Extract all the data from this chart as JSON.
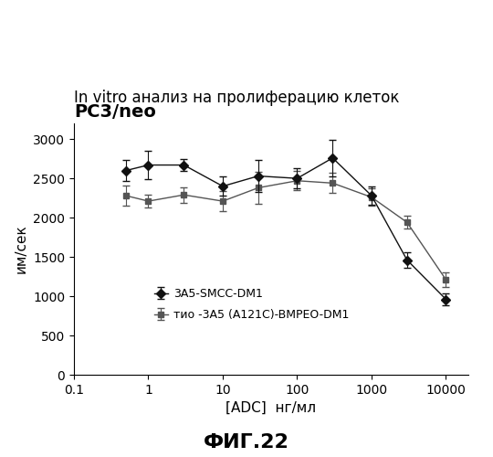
{
  "title_line1": "In vitro анализ на пролиферацию клеток",
  "title_line2": "PC3/neo",
  "xlabel": "[ADC]  нг/мл",
  "ylabel": "им/сек",
  "fig_label": "ФИГ.22",
  "xlim": [
    0.1,
    20000
  ],
  "ylim": [
    0,
    3200
  ],
  "yticks": [
    0,
    500,
    1000,
    1500,
    2000,
    2500,
    3000
  ],
  "series1_label": "3A5-SMCC-DM1",
  "series1_marker": "D",
  "series1_x": [
    0.5,
    1.0,
    3.0,
    10.0,
    30.0,
    100.0,
    300.0,
    1000.0,
    3000.0,
    10000.0
  ],
  "series1_y": [
    2600,
    2670,
    2670,
    2400,
    2530,
    2500,
    2760,
    2280,
    1460,
    960
  ],
  "series1_yerr": [
    130,
    180,
    80,
    120,
    200,
    130,
    230,
    120,
    100,
    80
  ],
  "series1_color": "#111111",
  "series2_label": "тио -3А5 (А121C)-BMPEO-DM1",
  "series2_marker": "s",
  "series2_x": [
    0.5,
    1.0,
    3.0,
    10.0,
    30.0,
    100.0,
    300.0,
    1000.0,
    3000.0,
    10000.0
  ],
  "series2_y": [
    2280,
    2210,
    2290,
    2210,
    2380,
    2470,
    2440,
    2260,
    1940,
    1210
  ],
  "series2_yerr": [
    130,
    80,
    100,
    130,
    200,
    120,
    130,
    110,
    80,
    90
  ],
  "series2_color": "#555555",
  "background_color": "#ffffff",
  "title_fontsize": 12,
  "axis_label_fontsize": 11,
  "tick_fontsize": 10,
  "legend_fontsize": 9,
  "figlabel_fontsize": 16
}
